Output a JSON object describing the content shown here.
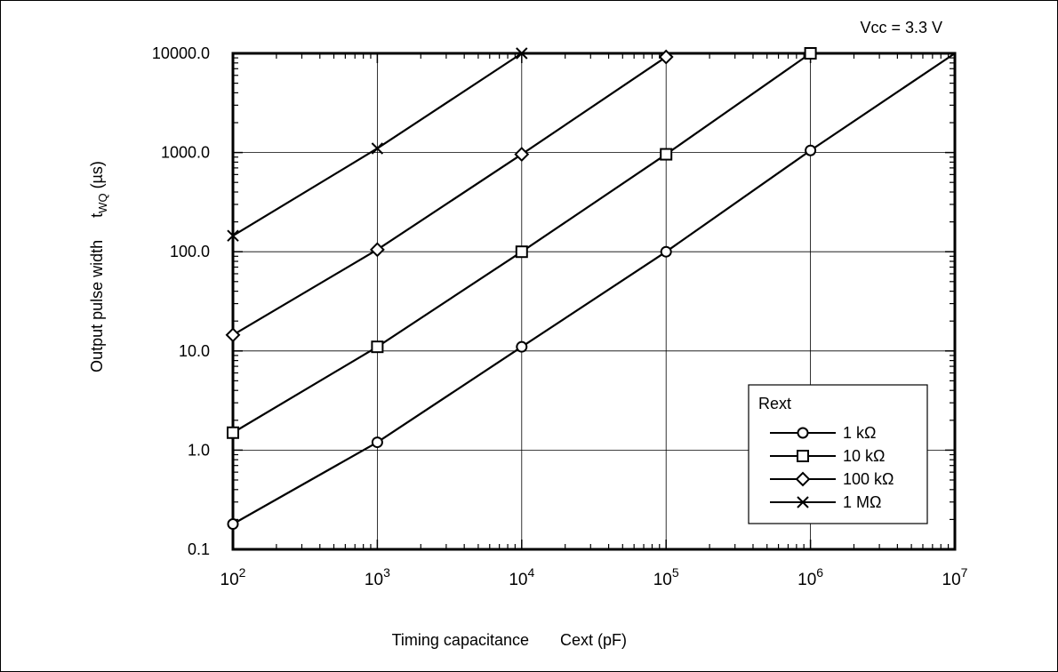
{
  "chart_data": {
    "type": "line",
    "annotation": "Vcc = 3.3 V",
    "xlabel": {
      "main": "Timing capacitance",
      "symbol": "Cext (pF)"
    },
    "ylabel": {
      "main": "Output pulse width",
      "symbol_base": "t",
      "symbol_sub": "WQ",
      "unit": "(µs)"
    },
    "x_scale": "log",
    "y_scale": "log",
    "xlim": [
      100,
      10000000
    ],
    "ylim": [
      0.1,
      10000
    ],
    "x_ticks": [
      {
        "value": 100,
        "base": "10",
        "exp": "2"
      },
      {
        "value": 1000,
        "base": "10",
        "exp": "3"
      },
      {
        "value": 10000,
        "base": "10",
        "exp": "4"
      },
      {
        "value": 100000,
        "base": "10",
        "exp": "5"
      },
      {
        "value": 1000000,
        "base": "10",
        "exp": "6"
      },
      {
        "value": 10000000,
        "base": "10",
        "exp": "7"
      }
    ],
    "y_ticks": [
      {
        "value": 0.1,
        "label": "0.1"
      },
      {
        "value": 1,
        "label": "1.0"
      },
      {
        "value": 10,
        "label": "10.0"
      },
      {
        "value": 100,
        "label": "100.0"
      },
      {
        "value": 1000,
        "label": "1000.0"
      },
      {
        "value": 10000,
        "label": "10000.0"
      }
    ],
    "grid": true,
    "legend": {
      "title": "Rext",
      "position": "bottom-right"
    },
    "series": [
      {
        "name": "1 kΩ",
        "marker": "circle",
        "points": [
          [
            100,
            0.18
          ],
          [
            1000,
            1.2
          ],
          [
            10000,
            11
          ],
          [
            100000,
            100
          ],
          [
            1000000,
            1050
          ]
        ],
        "line_end": [
          10000000,
          10000
        ]
      },
      {
        "name": "10 kΩ",
        "marker": "square",
        "points": [
          [
            100,
            1.5
          ],
          [
            1000,
            11
          ],
          [
            10000,
            100
          ],
          [
            100000,
            960
          ],
          [
            1000000,
            10000
          ]
        ],
        "line_end": [
          1000000,
          10000
        ]
      },
      {
        "name": "100 kΩ",
        "marker": "diamond",
        "points": [
          [
            100,
            14.5
          ],
          [
            1000,
            105
          ],
          [
            10000,
            960
          ],
          [
            100000,
            9200
          ]
        ],
        "line_end": [
          100000,
          9200
        ]
      },
      {
        "name": "1 MΩ",
        "marker": "x",
        "points": [
          [
            100,
            145
          ],
          [
            1000,
            1100
          ],
          [
            10000,
            10000
          ]
        ],
        "line_end": [
          10000,
          10000
        ]
      }
    ]
  }
}
